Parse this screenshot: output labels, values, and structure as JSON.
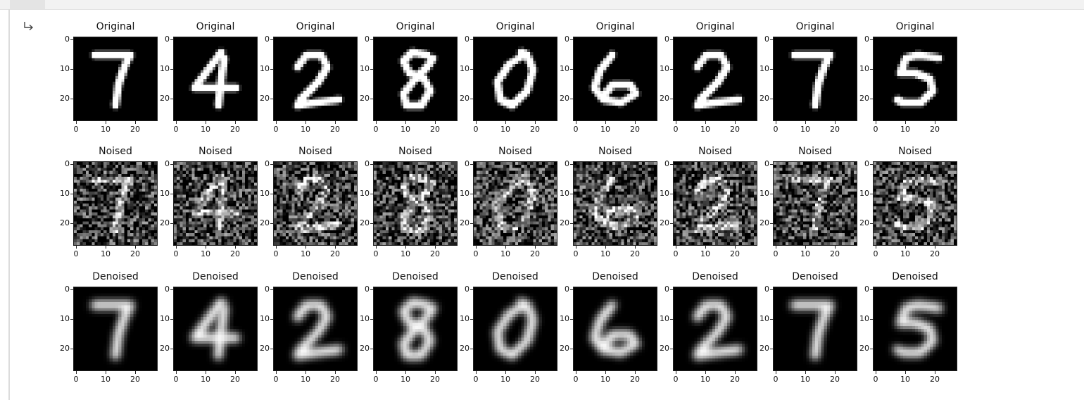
{
  "output": {
    "icon": "output-arrow-icon"
  },
  "figure": {
    "rows": [
      {
        "kind": "original",
        "title": "Original"
      },
      {
        "kind": "noised",
        "title": "Noised"
      },
      {
        "kind": "denoised",
        "title": "Denoised"
      }
    ],
    "digits": [
      "7",
      "4",
      "2",
      "8",
      "0",
      "6",
      "2",
      "7",
      "5"
    ],
    "ticks": {
      "x": [
        "0",
        "10",
        "20"
      ],
      "y": [
        "0",
        "10",
        "20"
      ]
    }
  }
}
